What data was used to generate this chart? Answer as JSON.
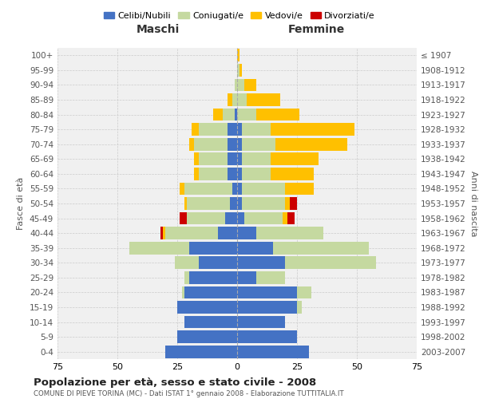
{
  "age_groups": [
    "0-4",
    "5-9",
    "10-14",
    "15-19",
    "20-24",
    "25-29",
    "30-34",
    "35-39",
    "40-44",
    "45-49",
    "50-54",
    "55-59",
    "60-64",
    "65-69",
    "70-74",
    "75-79",
    "80-84",
    "85-89",
    "90-94",
    "95-99",
    "100+"
  ],
  "birth_years": [
    "2003-2007",
    "1998-2002",
    "1993-1997",
    "1988-1992",
    "1983-1987",
    "1978-1982",
    "1973-1977",
    "1968-1972",
    "1963-1967",
    "1958-1962",
    "1953-1957",
    "1948-1952",
    "1943-1947",
    "1938-1942",
    "1933-1937",
    "1928-1932",
    "1923-1927",
    "1918-1922",
    "1913-1917",
    "1908-1912",
    "≤ 1907"
  ],
  "colors": {
    "celibi": "#4472c4",
    "coniugati": "#c5d9a0",
    "vedovi": "#ffc000",
    "divorziati": "#cc0000"
  },
  "maschi": {
    "celibi": [
      30,
      25,
      22,
      25,
      22,
      20,
      16,
      20,
      8,
      5,
      3,
      2,
      4,
      4,
      4,
      4,
      1,
      0,
      0,
      0,
      0
    ],
    "coniugati": [
      0,
      0,
      0,
      0,
      1,
      2,
      10,
      25,
      22,
      16,
      18,
      20,
      12,
      12,
      14,
      12,
      5,
      2,
      1,
      0,
      0
    ],
    "vedovi": [
      0,
      0,
      0,
      0,
      0,
      0,
      0,
      0,
      1,
      0,
      1,
      2,
      2,
      2,
      2,
      3,
      4,
      2,
      0,
      0,
      0
    ],
    "divorziati": [
      0,
      0,
      0,
      0,
      0,
      0,
      0,
      0,
      1,
      3,
      0,
      0,
      0,
      0,
      0,
      0,
      0,
      0,
      0,
      0,
      0
    ]
  },
  "femmine": {
    "celibi": [
      30,
      25,
      20,
      25,
      25,
      8,
      20,
      15,
      8,
      3,
      2,
      2,
      2,
      2,
      2,
      2,
      0,
      0,
      0,
      0,
      0
    ],
    "coniugati": [
      0,
      0,
      0,
      2,
      6,
      12,
      38,
      40,
      28,
      16,
      18,
      18,
      12,
      12,
      14,
      12,
      8,
      4,
      3,
      1,
      0
    ],
    "vedovi": [
      0,
      0,
      0,
      0,
      0,
      0,
      0,
      0,
      0,
      2,
      2,
      12,
      18,
      20,
      30,
      35,
      18,
      14,
      5,
      1,
      1
    ],
    "divorziati": [
      0,
      0,
      0,
      0,
      0,
      0,
      0,
      0,
      0,
      3,
      3,
      0,
      0,
      0,
      0,
      0,
      0,
      0,
      0,
      0,
      0
    ]
  },
  "xlim": 75,
  "title": "Popolazione per età, sesso e stato civile - 2008",
  "subtitle": "COMUNE DI PIEVE TORINA (MC) - Dati ISTAT 1° gennaio 2008 - Elaborazione TUTTITALIA.IT",
  "ylabel_left": "Fasce di età",
  "ylabel_right": "Anni di nascita",
  "xlabel_left": "Maschi",
  "xlabel_right": "Femmine",
  "legend_labels": [
    "Celibi/Nubili",
    "Coniugati/e",
    "Vedovi/e",
    "Divorziati/e"
  ],
  "bg_color": "#f0f0f0",
  "grid_color": "#cccccc"
}
